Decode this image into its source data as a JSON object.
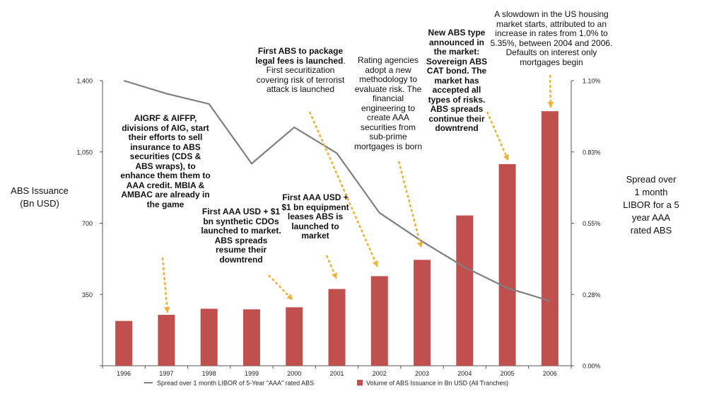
{
  "chart_data": {
    "type": "bar",
    "categories": [
      "1996",
      "1997",
      "1998",
      "1999",
      "2000",
      "2001",
      "2002",
      "2003",
      "2004",
      "2005",
      "2006"
    ],
    "series": [
      {
        "name": "Volume of ABS Issuance in Bn USD (All Tranches)",
        "kind": "bar",
        "axis": "left",
        "color": "#c0504d",
        "values": [
          220,
          250,
          280,
          277,
          287,
          377,
          440,
          520,
          738,
          990,
          1250
        ]
      },
      {
        "name": "Spread over 1 month LIBOR of 5-Year \"AAA\" rated ABS",
        "kind": "line",
        "axis": "right",
        "color": "#7f7f7f",
        "values": [
          1.1,
          1.05,
          1.01,
          0.78,
          0.92,
          0.82,
          0.59,
          0.48,
          0.38,
          0.3,
          0.25
        ]
      }
    ],
    "left_axis": {
      "ylim": [
        0,
        1400
      ],
      "ticks": [
        "",
        "350",
        "700",
        "1,050",
        "1,400"
      ],
      "label_lines": [
        "ABS Issuance",
        "(Bn USD)"
      ]
    },
    "right_axis": {
      "ylim": [
        0,
        1.1
      ],
      "ticks": [
        "0.00%",
        "0.28%",
        "0.55%",
        "0.83%",
        "1.10%"
      ],
      "label_lines": [
        "Spread over",
        "1 month",
        "LIBOR for a 5",
        "year AAA",
        "rated ABS"
      ]
    },
    "grid": false,
    "legend_position": "bottom",
    "annotations": [
      {
        "id": "a1997",
        "target_year": "1997",
        "bold": "AIGRF & AIFFP, divisions of AIG, start their efforts to sell insurance to ABS securities (CDS & ABS wraps), to enhance them them to AAA credit.  MBIA & AMBAC are already in the game",
        "normal": ""
      },
      {
        "id": "a2000",
        "target_year": "2000",
        "bold": "First  AAA USD + $1 bn  synthetic CDOs launched to market. ABS spreads resume their downtrend",
        "normal": ""
      },
      {
        "id": "a2001",
        "target_year": "2001",
        "bold": "First AAA USD + $1 bn equipment leases ABS is launched to market",
        "normal": ""
      },
      {
        "id": "a2002",
        "target_year": "2002",
        "bold": "First ABS to package legal fees is launched",
        "normal": ". First securitization covering risk of terrorist attack is launched"
      },
      {
        "id": "a2003",
        "target_year": "2003",
        "bold": "",
        "normal": "Rating agencies adopt a new methodology to evaluate risk. The financial engineering to create AAA securities from sub-prime mortgages is born"
      },
      {
        "id": "a2005",
        "target_year": "2005",
        "bold": "New ABS type announced in the market: Sovereign ABS CAT bond. The market has accepted all types of risks. ABS spreads continue their downtrend",
        "normal": ""
      },
      {
        "id": "a2006",
        "target_year": "2006",
        "bold": "",
        "normal": "A slowdown in the US housing market starts, attributed to an increase in rates from 1.0% to 5.35%, between 2004 and 2006. Defaults on interest only mortgages begin"
      }
    ]
  },
  "colors": {
    "bar": "#c0504d",
    "line": "#7f7f7f",
    "arrow": "#f0b030",
    "axis": "#555555"
  }
}
